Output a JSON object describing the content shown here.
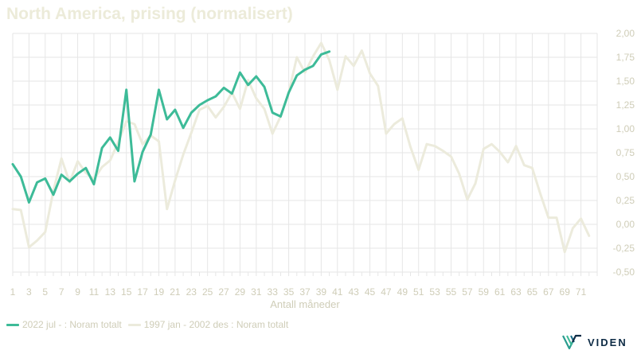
{
  "colors": {
    "series_a": "#3dbb98",
    "series_b": "#ecebdc",
    "grid": "#e6e6e6",
    "axis_text": "#cfcdb8",
    "title": "#ecebd9",
    "logo": "#0d2b45"
  },
  "logo": {
    "text": "VIDEN",
    "icon": "viden-logo-icon"
  },
  "chart_data": {
    "type": "line",
    "title": "North America, prising (normalisert)",
    "xlabel": "Antall måneder",
    "ylabel": "",
    "xlim": [
      1,
      73
    ],
    "ylim": [
      -0.5,
      2.0
    ],
    "yticks": [
      -0.5,
      -0.25,
      0.0,
      0.25,
      0.5,
      0.75,
      1.0,
      1.25,
      1.5,
      1.75,
      2.0
    ],
    "ytick_labels": [
      "-0,50",
      "-0,25",
      "0,00",
      "0,25",
      "0,50",
      "0,75",
      "1,00",
      "1,25",
      "1,50",
      "1,75",
      "2,00"
    ],
    "xticks": [
      1,
      3,
      5,
      7,
      9,
      11,
      13,
      15,
      17,
      19,
      21,
      23,
      25,
      27,
      29,
      31,
      33,
      35,
      37,
      39,
      41,
      43,
      45,
      47,
      49,
      51,
      53,
      55,
      57,
      59,
      61,
      63,
      65,
      67,
      69,
      71
    ],
    "grid": true,
    "legend_position": "bottom-left",
    "series": [
      {
        "name": "2022 jul - : Noram totalt",
        "color": "#3dbb98",
        "x": [
          1,
          2,
          3,
          4,
          5,
          6,
          7,
          8,
          9,
          10,
          11,
          12,
          13,
          14,
          15,
          16,
          17,
          18,
          19,
          20,
          21,
          22,
          23,
          24,
          25,
          26,
          27,
          28,
          29,
          30,
          31,
          32,
          33,
          34,
          35,
          36,
          37,
          38,
          39,
          40
        ],
        "values": [
          0.63,
          0.5,
          0.23,
          0.44,
          0.48,
          0.31,
          0.52,
          0.45,
          0.53,
          0.59,
          0.42,
          0.8,
          0.91,
          0.77,
          1.41,
          0.45,
          0.76,
          0.94,
          1.41,
          1.1,
          1.2,
          1.01,
          1.17,
          1.25,
          1.3,
          1.34,
          1.43,
          1.37,
          1.59,
          1.46,
          1.55,
          1.44,
          1.17,
          1.13,
          1.38,
          1.56,
          1.62,
          1.66,
          1.78,
          1.81
        ]
      },
      {
        "name": "1997 jan - 2002 des : Noram totalt",
        "color": "#ecebdc",
        "x": [
          1,
          2,
          3,
          4,
          5,
          6,
          7,
          8,
          9,
          10,
          11,
          12,
          13,
          14,
          15,
          16,
          17,
          18,
          19,
          20,
          21,
          22,
          23,
          24,
          25,
          26,
          27,
          28,
          29,
          30,
          31,
          32,
          33,
          34,
          35,
          36,
          37,
          38,
          39,
          40,
          41,
          42,
          43,
          44,
          45,
          46,
          47,
          48,
          49,
          50,
          51,
          52,
          53,
          54,
          55,
          56,
          57,
          58,
          59,
          60,
          61,
          62,
          63,
          64,
          65,
          66,
          67,
          68,
          69,
          70,
          71,
          72
        ],
        "values": [
          0.16,
          0.15,
          -0.24,
          -0.17,
          -0.08,
          0.35,
          0.69,
          0.44,
          0.66,
          0.54,
          0.47,
          0.6,
          0.67,
          0.86,
          1.08,
          1.05,
          0.84,
          0.93,
          0.87,
          0.16,
          0.46,
          0.73,
          0.96,
          1.2,
          1.24,
          1.12,
          1.23,
          1.38,
          1.21,
          1.51,
          1.32,
          1.21,
          0.95,
          1.13,
          1.38,
          1.75,
          1.59,
          1.76,
          1.9,
          1.72,
          1.41,
          1.76,
          1.66,
          1.82,
          1.58,
          1.45,
          0.95,
          1.05,
          1.11,
          0.81,
          0.57,
          0.84,
          0.82,
          0.77,
          0.71,
          0.53,
          0.26,
          0.43,
          0.79,
          0.84,
          0.76,
          0.65,
          0.82,
          0.62,
          0.59,
          0.32,
          0.07,
          0.07,
          -0.29,
          -0.04,
          0.06,
          -0.12
        ]
      }
    ]
  }
}
